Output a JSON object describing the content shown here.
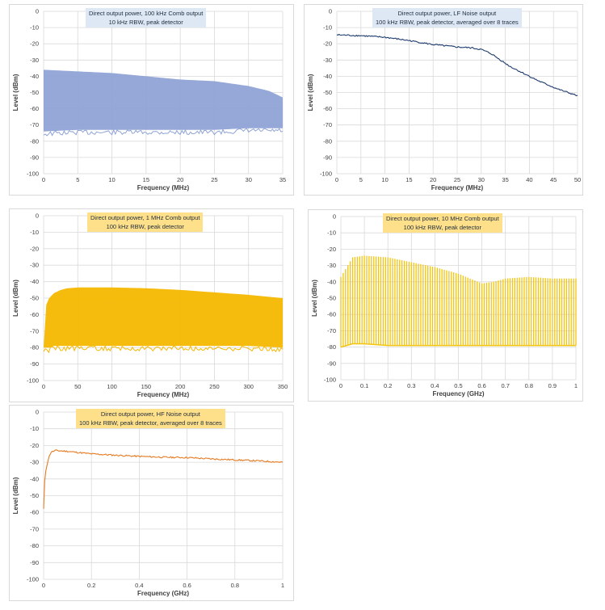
{
  "chart_data": [
    {
      "id": "c1",
      "type": "line",
      "title_lines": [
        "Direct output power, 100 kHz Comb output",
        "10 kHz RBW, peak detector"
      ],
      "xlabel": "Frequency (MHz)",
      "ylabel": "Level (dBm)",
      "xlim": [
        0,
        35
      ],
      "ylim": [
        -100,
        0
      ],
      "xticks": [
        0,
        5,
        10,
        15,
        20,
        25,
        30,
        35
      ],
      "yticks": [
        0,
        -10,
        -20,
        -30,
        -40,
        -50,
        -60,
        -70,
        -80,
        -90,
        -100
      ],
      "grid": true,
      "color": "#8fa3d6",
      "title_bg": "#dde8f4",
      "series": [
        {
          "kind": "band",
          "x": [
            0,
            5,
            10,
            15,
            20,
            25,
            30,
            33,
            35
          ],
          "upper": [
            -36,
            -37,
            -38,
            -40,
            -42,
            -43,
            -46,
            -49,
            -53
          ],
          "lower": [
            -74,
            -73,
            -73,
            -73,
            -73,
            -73,
            -72,
            -72,
            -72
          ]
        }
      ]
    },
    {
      "id": "c2",
      "type": "line",
      "title_lines": [
        "Direct output power, LF Noise output",
        "100 kHz RBW, peak detector, averaged over 8 traces"
      ],
      "xlabel": "Frequency (MHz)",
      "ylabel": "Level (dBm)",
      "xlim": [
        0,
        50
      ],
      "ylim": [
        -100,
        0
      ],
      "xticks": [
        0,
        5,
        10,
        15,
        20,
        25,
        30,
        35,
        40,
        45,
        50
      ],
      "yticks": [
        0,
        -10,
        -20,
        -30,
        -40,
        -50,
        -60,
        -70,
        -80,
        -90,
        -100
      ],
      "grid": true,
      "color": "#1f3c6e",
      "title_bg": "#dde8f4",
      "series": [
        {
          "kind": "line",
          "x": [
            0,
            5,
            10,
            15,
            20,
            25,
            28,
            30,
            32,
            34,
            36,
            38,
            40,
            42,
            44,
            46,
            48,
            50
          ],
          "y": [
            -14.5,
            -15,
            -16,
            -18,
            -20.5,
            -22,
            -22.5,
            -23.5,
            -26,
            -30,
            -34,
            -37,
            -40,
            -43,
            -45.5,
            -48,
            -50,
            -52
          ]
        }
      ]
    },
    {
      "id": "c3",
      "type": "line",
      "title_lines": [
        "Direct output power, 1 MHz Comb output",
        "100 kHz RBW, peak detector"
      ],
      "xlabel": "Frequency (MHz)",
      "ylabel": "Level (dBm)",
      "xlim": [
        0,
        350
      ],
      "ylim": [
        -100,
        0
      ],
      "xticks": [
        0,
        50,
        100,
        150,
        200,
        250,
        300,
        350
      ],
      "yticks": [
        0,
        -10,
        -20,
        -30,
        -40,
        -50,
        -60,
        -70,
        -80,
        -90,
        -100
      ],
      "grid": true,
      "color": "#f5b800",
      "title_bg": "#ffe08a",
      "series": [
        {
          "kind": "band",
          "x": [
            0,
            3,
            8,
            15,
            25,
            35,
            50,
            100,
            150,
            200,
            250,
            300,
            350
          ],
          "upper": [
            -80,
            -55,
            -50,
            -47,
            -45,
            -44,
            -43.5,
            -43.5,
            -44,
            -45,
            -46.5,
            -48,
            -50
          ],
          "lower": [
            -80,
            -80,
            -80,
            -79,
            -79,
            -79,
            -79,
            -79,
            -79,
            -79,
            -79,
            -79,
            -80
          ]
        }
      ]
    },
    {
      "id": "c4",
      "type": "line",
      "title_lines": [
        "Direct output power, 10 MHz Comb output",
        "100 kHz RBW, peak detector"
      ],
      "xlabel": "Frequency (GHz)",
      "ylabel": "Level (dBm)",
      "xlim": [
        0,
        1
      ],
      "ylim": [
        -100,
        0
      ],
      "xticks": [
        0,
        0.1,
        0.2,
        0.3,
        0.4,
        0.5,
        0.6,
        0.7,
        0.8,
        0.9,
        1
      ],
      "yticks": [
        0,
        -10,
        -20,
        -30,
        -40,
        -50,
        -60,
        -70,
        -80,
        -90,
        -100
      ],
      "grid": true,
      "color": "#f2c40f",
      "title_bg": "#ffe08a",
      "series": [
        {
          "kind": "comb",
          "x": [
            0,
            0.05,
            0.1,
            0.2,
            0.3,
            0.4,
            0.5,
            0.55,
            0.6,
            0.65,
            0.7,
            0.8,
            0.9,
            1
          ],
          "upper": [
            -37,
            -25,
            -24,
            -25,
            -28,
            -31,
            -35,
            -38,
            -41,
            -40,
            -38,
            -37,
            -38,
            -38
          ],
          "lower": [
            -80,
            -78,
            -78,
            -79,
            -79,
            -79,
            -79,
            -79,
            -79,
            -79,
            -79,
            -79,
            -79,
            -79
          ],
          "count": 100
        }
      ]
    },
    {
      "id": "c5",
      "type": "line",
      "title_lines": [
        "Direct output power, HF Noise output",
        "100 kHz RBW, peak detector, averaged over 8 traces"
      ],
      "xlabel": "Frequency (GHz)",
      "ylabel": "Level (dBm)",
      "xlim": [
        0,
        1
      ],
      "ylim": [
        -100,
        0
      ],
      "xticks": [
        0,
        0.2,
        0.4,
        0.6,
        0.8,
        1
      ],
      "yticks": [
        0,
        -10,
        -20,
        -30,
        -40,
        -50,
        -60,
        -70,
        -80,
        -90,
        -100
      ],
      "grid": true,
      "color": "#e57a21",
      "title_bg": "#ffe08a",
      "series": [
        {
          "kind": "line",
          "x": [
            0,
            0.005,
            0.01,
            0.02,
            0.03,
            0.05,
            0.1,
            0.2,
            0.3,
            0.4,
            0.5,
            0.6,
            0.7,
            0.8,
            0.9,
            1
          ],
          "y": [
            -58,
            -40,
            -34,
            -28,
            -24,
            -23,
            -23.5,
            -25,
            -25.8,
            -26.5,
            -27,
            -27.2,
            -28,
            -28.6,
            -29.2,
            -30
          ]
        }
      ]
    }
  ]
}
